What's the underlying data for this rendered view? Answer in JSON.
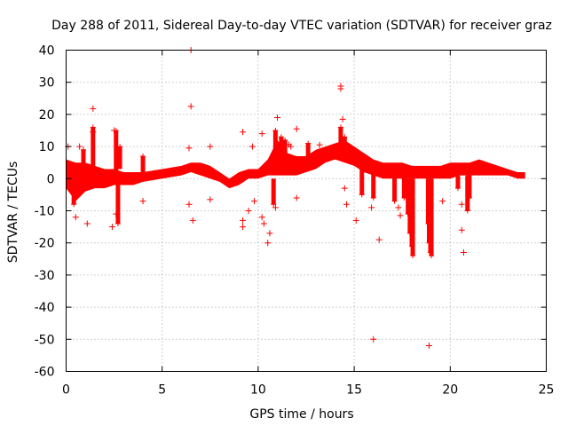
{
  "chart_data": {
    "type": "scatter",
    "title": "Day 288 of 2011, Sidereal Day-to-day VTEC variation (SDTVAR) for receiver graz",
    "xlabel": "GPS time / hours",
    "ylabel": "SDTVAR / TECUs",
    "xlim": [
      0,
      25
    ],
    "ylim": [
      -60,
      40
    ],
    "xticks": [
      0,
      5,
      10,
      15,
      20,
      25
    ],
    "yticks": [
      40,
      30,
      20,
      10,
      0,
      -10,
      -20,
      -30,
      -40,
      -50,
      -60
    ],
    "grid": true,
    "marker": "+",
    "color": "#ff0000",
    "series": [
      {
        "name": "SDTVAR",
        "band": [
          {
            "x": 0.0,
            "lo": -3,
            "hi": 6
          },
          {
            "x": 0.5,
            "lo": -7,
            "hi": 5
          },
          {
            "x": 1.0,
            "lo": -4,
            "hi": 5
          },
          {
            "x": 1.5,
            "lo": -3,
            "hi": 4
          },
          {
            "x": 2.0,
            "lo": -3,
            "hi": 3
          },
          {
            "x": 2.5,
            "lo": -2,
            "hi": 3
          },
          {
            "x": 3.0,
            "lo": -2,
            "hi": 2
          },
          {
            "x": 3.5,
            "lo": -2,
            "hi": 2
          },
          {
            "x": 4.0,
            "lo": -1,
            "hi": 2
          },
          {
            "x": 5.0,
            "lo": 0,
            "hi": 3
          },
          {
            "x": 6.0,
            "lo": 1,
            "hi": 4
          },
          {
            "x": 6.5,
            "lo": 2,
            "hi": 5
          },
          {
            "x": 7.0,
            "lo": 1,
            "hi": 5
          },
          {
            "x": 7.5,
            "lo": 0,
            "hi": 4
          },
          {
            "x": 8.0,
            "lo": -1,
            "hi": 2
          },
          {
            "x": 8.5,
            "lo": -3,
            "hi": 0
          },
          {
            "x": 9.0,
            "lo": -2,
            "hi": 2
          },
          {
            "x": 9.5,
            "lo": 0,
            "hi": 3
          },
          {
            "x": 10.0,
            "lo": 0,
            "hi": 3
          },
          {
            "x": 10.5,
            "lo": 1,
            "hi": 6
          },
          {
            "x": 11.0,
            "lo": 1,
            "hi": 12
          },
          {
            "x": 11.5,
            "lo": 1,
            "hi": 8
          },
          {
            "x": 12.0,
            "lo": 1,
            "hi": 7
          },
          {
            "x": 12.5,
            "lo": 2,
            "hi": 7
          },
          {
            "x": 13.0,
            "lo": 3,
            "hi": 9
          },
          {
            "x": 13.5,
            "lo": 5,
            "hi": 10
          },
          {
            "x": 14.0,
            "lo": 6,
            "hi": 11
          },
          {
            "x": 14.5,
            "lo": 5,
            "hi": 12
          },
          {
            "x": 15.0,
            "lo": 4,
            "hi": 10
          },
          {
            "x": 15.5,
            "lo": 2,
            "hi": 8
          },
          {
            "x": 16.0,
            "lo": 1,
            "hi": 6
          },
          {
            "x": 16.5,
            "lo": 0,
            "hi": 5
          },
          {
            "x": 17.0,
            "lo": 0,
            "hi": 5
          },
          {
            "x": 17.5,
            "lo": 0,
            "hi": 5
          },
          {
            "x": 18.0,
            "lo": 0,
            "hi": 4
          },
          {
            "x": 18.5,
            "lo": 0,
            "hi": 4
          },
          {
            "x": 19.0,
            "lo": 0,
            "hi": 4
          },
          {
            "x": 19.5,
            "lo": 0,
            "hi": 4
          },
          {
            "x": 20.0,
            "lo": 0,
            "hi": 5
          },
          {
            "x": 20.5,
            "lo": 1,
            "hi": 5
          },
          {
            "x": 21.0,
            "lo": 1,
            "hi": 5
          },
          {
            "x": 21.5,
            "lo": 1,
            "hi": 6
          },
          {
            "x": 22.0,
            "lo": 1,
            "hi": 5
          },
          {
            "x": 22.5,
            "lo": 1,
            "hi": 4
          },
          {
            "x": 23.0,
            "lo": 1,
            "hi": 3
          },
          {
            "x": 23.5,
            "lo": 0,
            "hi": 2
          },
          {
            "x": 23.9,
            "lo": 0,
            "hi": 2
          }
        ],
        "spikes": [
          {
            "x": 0.4,
            "from": -2,
            "to": -8
          },
          {
            "x": 0.9,
            "from": 3,
            "to": 9
          },
          {
            "x": 1.4,
            "from": 2,
            "to": 16
          },
          {
            "x": 2.6,
            "from": 2,
            "to": 15
          },
          {
            "x": 2.8,
            "from": 3,
            "to": 10
          },
          {
            "x": 2.7,
            "from": -2,
            "to": -14
          },
          {
            "x": 4.0,
            "from": 2,
            "to": 7
          },
          {
            "x": 10.9,
            "from": 3,
            "to": 15
          },
          {
            "x": 11.2,
            "from": 3,
            "to": 13
          },
          {
            "x": 11.4,
            "from": 3,
            "to": 12
          },
          {
            "x": 10.8,
            "from": 0,
            "to": -8
          },
          {
            "x": 12.6,
            "from": 4,
            "to": 11
          },
          {
            "x": 14.3,
            "from": 8,
            "to": 16
          },
          {
            "x": 14.5,
            "from": 6,
            "to": 13
          },
          {
            "x": 15.4,
            "from": 3,
            "to": -5
          },
          {
            "x": 16.0,
            "from": 2,
            "to": -6
          },
          {
            "x": 17.1,
            "from": 1,
            "to": -7
          },
          {
            "x": 17.6,
            "from": 1,
            "to": -6
          },
          {
            "x": 17.8,
            "from": 0,
            "to": -11
          },
          {
            "x": 17.9,
            "from": 0,
            "to": -17
          },
          {
            "x": 18.0,
            "from": 0,
            "to": -21
          },
          {
            "x": 18.05,
            "from": 0,
            "to": -24
          },
          {
            "x": 18.9,
            "from": 0,
            "to": -20
          },
          {
            "x": 18.97,
            "from": 0,
            "to": -23
          },
          {
            "x": 19.02,
            "from": 0,
            "to": -24
          },
          {
            "x": 18.85,
            "from": 0,
            "to": -14
          },
          {
            "x": 20.4,
            "from": 1,
            "to": -3
          },
          {
            "x": 20.9,
            "from": 1,
            "to": -10
          },
          {
            "x": 21.0,
            "from": 2,
            "to": -6
          }
        ],
        "points": [
          [
            6.5,
            40
          ],
          [
            6.5,
            22.5
          ],
          [
            1.4,
            21.8
          ],
          [
            14.3,
            28
          ],
          [
            14.3,
            28.8
          ],
          [
            14.4,
            18.5
          ],
          [
            11.0,
            19
          ],
          [
            12.0,
            15.5
          ],
          [
            9.2,
            14.5
          ],
          [
            2.5,
            15
          ],
          [
            1.4,
            14.5
          ],
          [
            6.4,
            9.5
          ],
          [
            7.5,
            10
          ],
          [
            9.7,
            10
          ],
          [
            10.2,
            14
          ],
          [
            0.7,
            10
          ],
          [
            0.1,
            10
          ],
          [
            13.2,
            10.5
          ],
          [
            11.6,
            10.6
          ],
          [
            11.7,
            10
          ],
          [
            6.4,
            -8
          ],
          [
            6.6,
            -13
          ],
          [
            4.0,
            -7
          ],
          [
            2.6,
            -11
          ],
          [
            2.4,
            -15
          ],
          [
            1.1,
            -14
          ],
          [
            0.5,
            -12
          ],
          [
            9.2,
            -13
          ],
          [
            9.2,
            -15
          ],
          [
            9.5,
            -10
          ],
          [
            9.8,
            -7
          ],
          [
            10.2,
            -12
          ],
          [
            10.3,
            -14
          ],
          [
            10.5,
            -20
          ],
          [
            10.6,
            -17
          ],
          [
            10.9,
            -9
          ],
          [
            12.0,
            -6
          ],
          [
            14.5,
            -3
          ],
          [
            14.6,
            -8
          ],
          [
            15.1,
            -13
          ],
          [
            16.3,
            -19
          ],
          [
            16.0,
            -50
          ],
          [
            18.9,
            -52
          ],
          [
            19.6,
            -7
          ],
          [
            20.6,
            -8
          ],
          [
            20.6,
            -16
          ],
          [
            20.7,
            -23
          ],
          [
            17.3,
            -9
          ],
          [
            17.4,
            -11.5
          ],
          [
            15.9,
            -9
          ],
          [
            7.5,
            -6.5
          ]
        ]
      }
    ]
  }
}
